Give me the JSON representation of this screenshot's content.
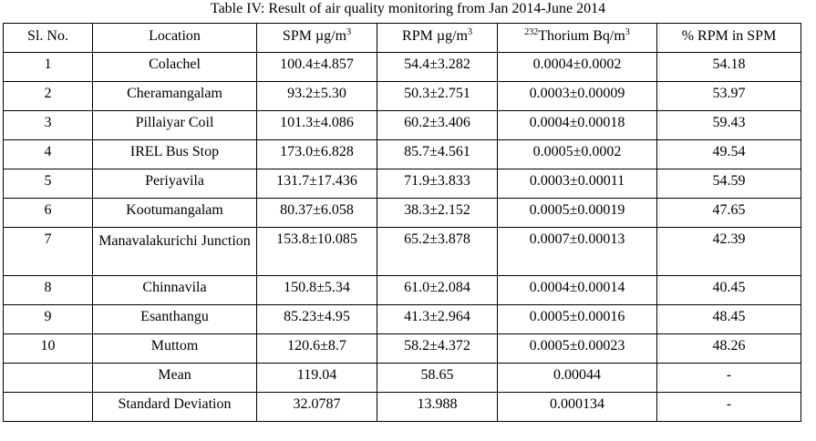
{
  "caption": "Table IV: Result of air quality monitoring from Jan 2014-June 2014",
  "headers": {
    "sl_no": "Sl. No.",
    "location": "Location",
    "spm": "SPM µg/m",
    "spm_sup": "3",
    "rpm": "RPM µg/m",
    "rpm_sup": "3",
    "thorium_pre_sup": "232",
    "thorium": "Thorium Bq/m",
    "thorium_sup": "3",
    "pct": "% RPM in SPM"
  },
  "rows": [
    {
      "sl": "1",
      "location": "Colachel",
      "spm": "100.4±4.857",
      "rpm": "54.4±3.282",
      "thorium": "0.0004±0.0002",
      "pct": "54.18"
    },
    {
      "sl": "2",
      "location": "Cheramangalam",
      "spm": "93.2±5.30",
      "rpm": "50.3±2.751",
      "thorium": "0.0003±0.00009",
      "pct": "53.97"
    },
    {
      "sl": "3",
      "location": "Pillaiyar Coil",
      "spm": "101.3±4.086",
      "rpm": "60.2±3.406",
      "thorium": "0.0004±0.00018",
      "pct": "59.43"
    },
    {
      "sl": "4",
      "location": "IREL Bus Stop",
      "spm": "173.0±6.828",
      "rpm": "85.7±4.561",
      "thorium": "0.0005±0.0002",
      "pct": "49.54"
    },
    {
      "sl": "5",
      "location": "Periyavila",
      "spm": "131.7±17.436",
      "rpm": "71.9±3.833",
      "thorium": "0.0003±0.00011",
      "pct": "54.59"
    },
    {
      "sl": "6",
      "location": "Kootumangalam",
      "spm": "80.37±6.058",
      "rpm": "38.3±2.152",
      "thorium": "0.0005±0.00019",
      "pct": "47.65"
    },
    {
      "sl": "7",
      "location": "Manavalakurichi Junction",
      "spm": "153.8±10.085",
      "rpm": "65.2±3.878",
      "thorium": "0.0007±0.00013",
      "pct": "42.39"
    },
    {
      "sl": "8",
      "location": "Chinnavila",
      "spm": "150.8±5.34",
      "rpm": "61.0±2.084",
      "thorium": "0.0004±0.00014",
      "pct": "40.45"
    },
    {
      "sl": "9",
      "location": "Esanthangu",
      "spm": "85.23±4.95",
      "rpm": "41.3±2.964",
      "thorium": "0.0005±0.00016",
      "pct": "48.45"
    },
    {
      "sl": "10",
      "location": "Muttom",
      "spm": "120.6±8.7",
      "rpm": "58.2±4.372",
      "thorium": "0.0005±0.00023",
      "pct": "48.26"
    }
  ],
  "summary": [
    {
      "label": "Mean",
      "spm": "119.04",
      "rpm": "58.65",
      "thorium": "0.00044",
      "pct": "-"
    },
    {
      "label": "Standard Deviation",
      "spm": "32.0787",
      "rpm": "13.988",
      "thorium": "0.000134",
      "pct": "-"
    }
  ]
}
